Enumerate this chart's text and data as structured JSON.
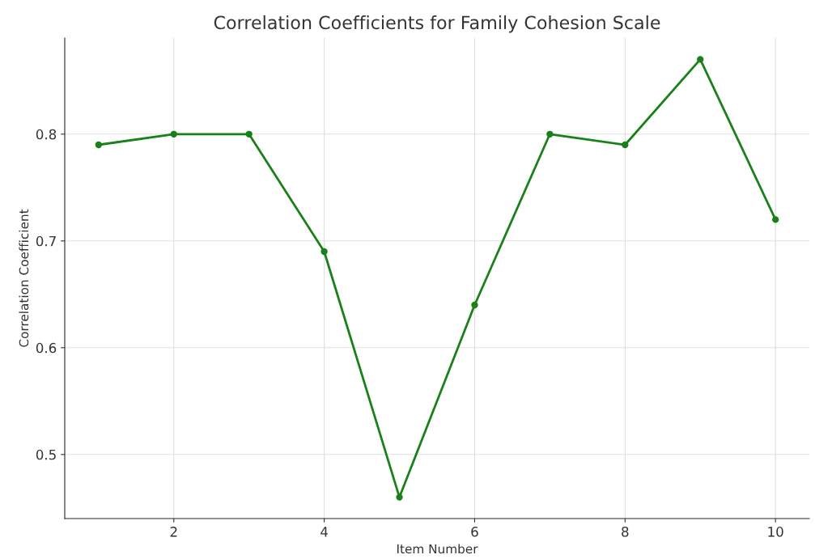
{
  "chart_data": {
    "type": "line",
    "title": "Correlation Coefficients for Family Cohesion Scale",
    "xlabel": "Item Number",
    "ylabel": "Correlation Coefficient",
    "x": [
      1,
      2,
      3,
      4,
      5,
      6,
      7,
      8,
      9,
      10
    ],
    "series": [
      {
        "color": "#1a801a",
        "values": [
          0.79,
          0.8,
          0.8,
          0.69,
          0.46,
          0.64,
          0.8,
          0.79,
          0.87,
          0.72
        ]
      }
    ],
    "xlim": [
      0.55,
      10.45
    ],
    "xticks": [
      2,
      4,
      6,
      8,
      10
    ],
    "ylim": [
      0.44,
      0.89
    ],
    "yticks": [
      0.5,
      0.6,
      0.7,
      0.8
    ],
    "grid": true,
    "marker": "circle",
    "line_style": "solid"
  }
}
